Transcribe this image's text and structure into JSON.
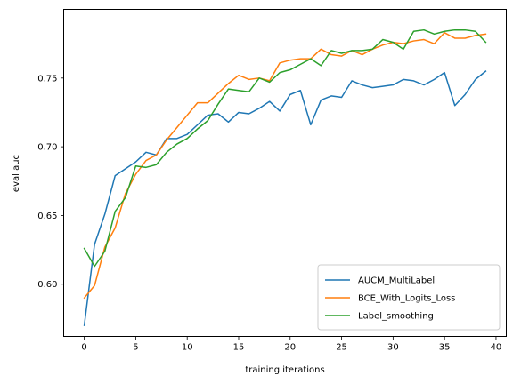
{
  "chart_data": {
    "type": "line",
    "xlabel": "training iterations",
    "ylabel": "eval auc",
    "xlim": [
      -2,
      41
    ],
    "ylim": [
      0.562,
      0.8
    ],
    "xticks": [
      0,
      5,
      10,
      15,
      20,
      25,
      30,
      35,
      40
    ],
    "yticks": [
      0.6,
      0.65,
      0.7,
      0.75
    ],
    "ytick_labels": [
      "0.60",
      "0.65",
      "0.70",
      "0.75"
    ],
    "legend_position": "lower-right",
    "grid": false,
    "series": [
      {
        "name": "AUCM_MultiLabel",
        "color": "#1f77b4",
        "x": [
          0,
          1,
          2,
          3,
          4,
          5,
          6,
          7,
          8,
          9,
          10,
          11,
          12,
          13,
          14,
          15,
          16,
          17,
          18,
          19,
          20,
          21,
          22,
          23,
          24,
          25,
          26,
          27,
          28,
          29,
          30,
          31,
          32,
          33,
          34,
          35,
          36,
          37,
          38,
          39
        ],
        "values": [
          0.57,
          0.629,
          0.651,
          0.679,
          0.684,
          0.689,
          0.696,
          0.694,
          0.706,
          0.706,
          0.709,
          0.716,
          0.723,
          0.724,
          0.718,
          0.725,
          0.724,
          0.728,
          0.733,
          0.726,
          0.738,
          0.741,
          0.716,
          0.734,
          0.737,
          0.736,
          0.748,
          0.745,
          0.743,
          0.744,
          0.745,
          0.749,
          0.748,
          0.745,
          0.749,
          0.754,
          0.73,
          0.738,
          0.749,
          0.755
        ]
      },
      {
        "name": "BCE_With_Logits_Loss",
        "color": "#ff7f0e",
        "x": [
          0,
          1,
          2,
          3,
          4,
          5,
          6,
          7,
          8,
          9,
          10,
          11,
          12,
          13,
          14,
          15,
          16,
          17,
          18,
          19,
          20,
          21,
          22,
          23,
          24,
          25,
          26,
          27,
          28,
          29,
          30,
          31,
          32,
          33,
          34,
          35,
          36,
          37,
          38,
          39
        ],
        "values": [
          0.59,
          0.599,
          0.627,
          0.641,
          0.666,
          0.68,
          0.69,
          0.694,
          0.705,
          0.714,
          0.723,
          0.732,
          0.732,
          0.739,
          0.746,
          0.752,
          0.749,
          0.75,
          0.748,
          0.761,
          0.763,
          0.764,
          0.764,
          0.771,
          0.767,
          0.766,
          0.77,
          0.767,
          0.771,
          0.774,
          0.776,
          0.775,
          0.777,
          0.778,
          0.775,
          0.783,
          0.779,
          0.779,
          0.781,
          0.782
        ]
      },
      {
        "name": "Label_smoothing",
        "color": "#2ca02c",
        "x": [
          0,
          1,
          2,
          3,
          4,
          5,
          6,
          7,
          8,
          9,
          10,
          11,
          12,
          13,
          14,
          15,
          16,
          17,
          18,
          19,
          20,
          21,
          22,
          23,
          24,
          25,
          26,
          27,
          28,
          29,
          30,
          31,
          32,
          33,
          34,
          35,
          36,
          37,
          38,
          39
        ],
        "values": [
          0.626,
          0.613,
          0.624,
          0.653,
          0.663,
          0.686,
          0.685,
          0.687,
          0.696,
          0.702,
          0.706,
          0.713,
          0.719,
          0.731,
          0.742,
          0.741,
          0.74,
          0.75,
          0.747,
          0.754,
          0.756,
          0.76,
          0.764,
          0.759,
          0.77,
          0.768,
          0.77,
          0.77,
          0.771,
          0.778,
          0.776,
          0.771,
          0.784,
          0.785,
          0.782,
          0.784,
          0.785,
          0.785,
          0.784,
          0.776
        ]
      }
    ]
  }
}
